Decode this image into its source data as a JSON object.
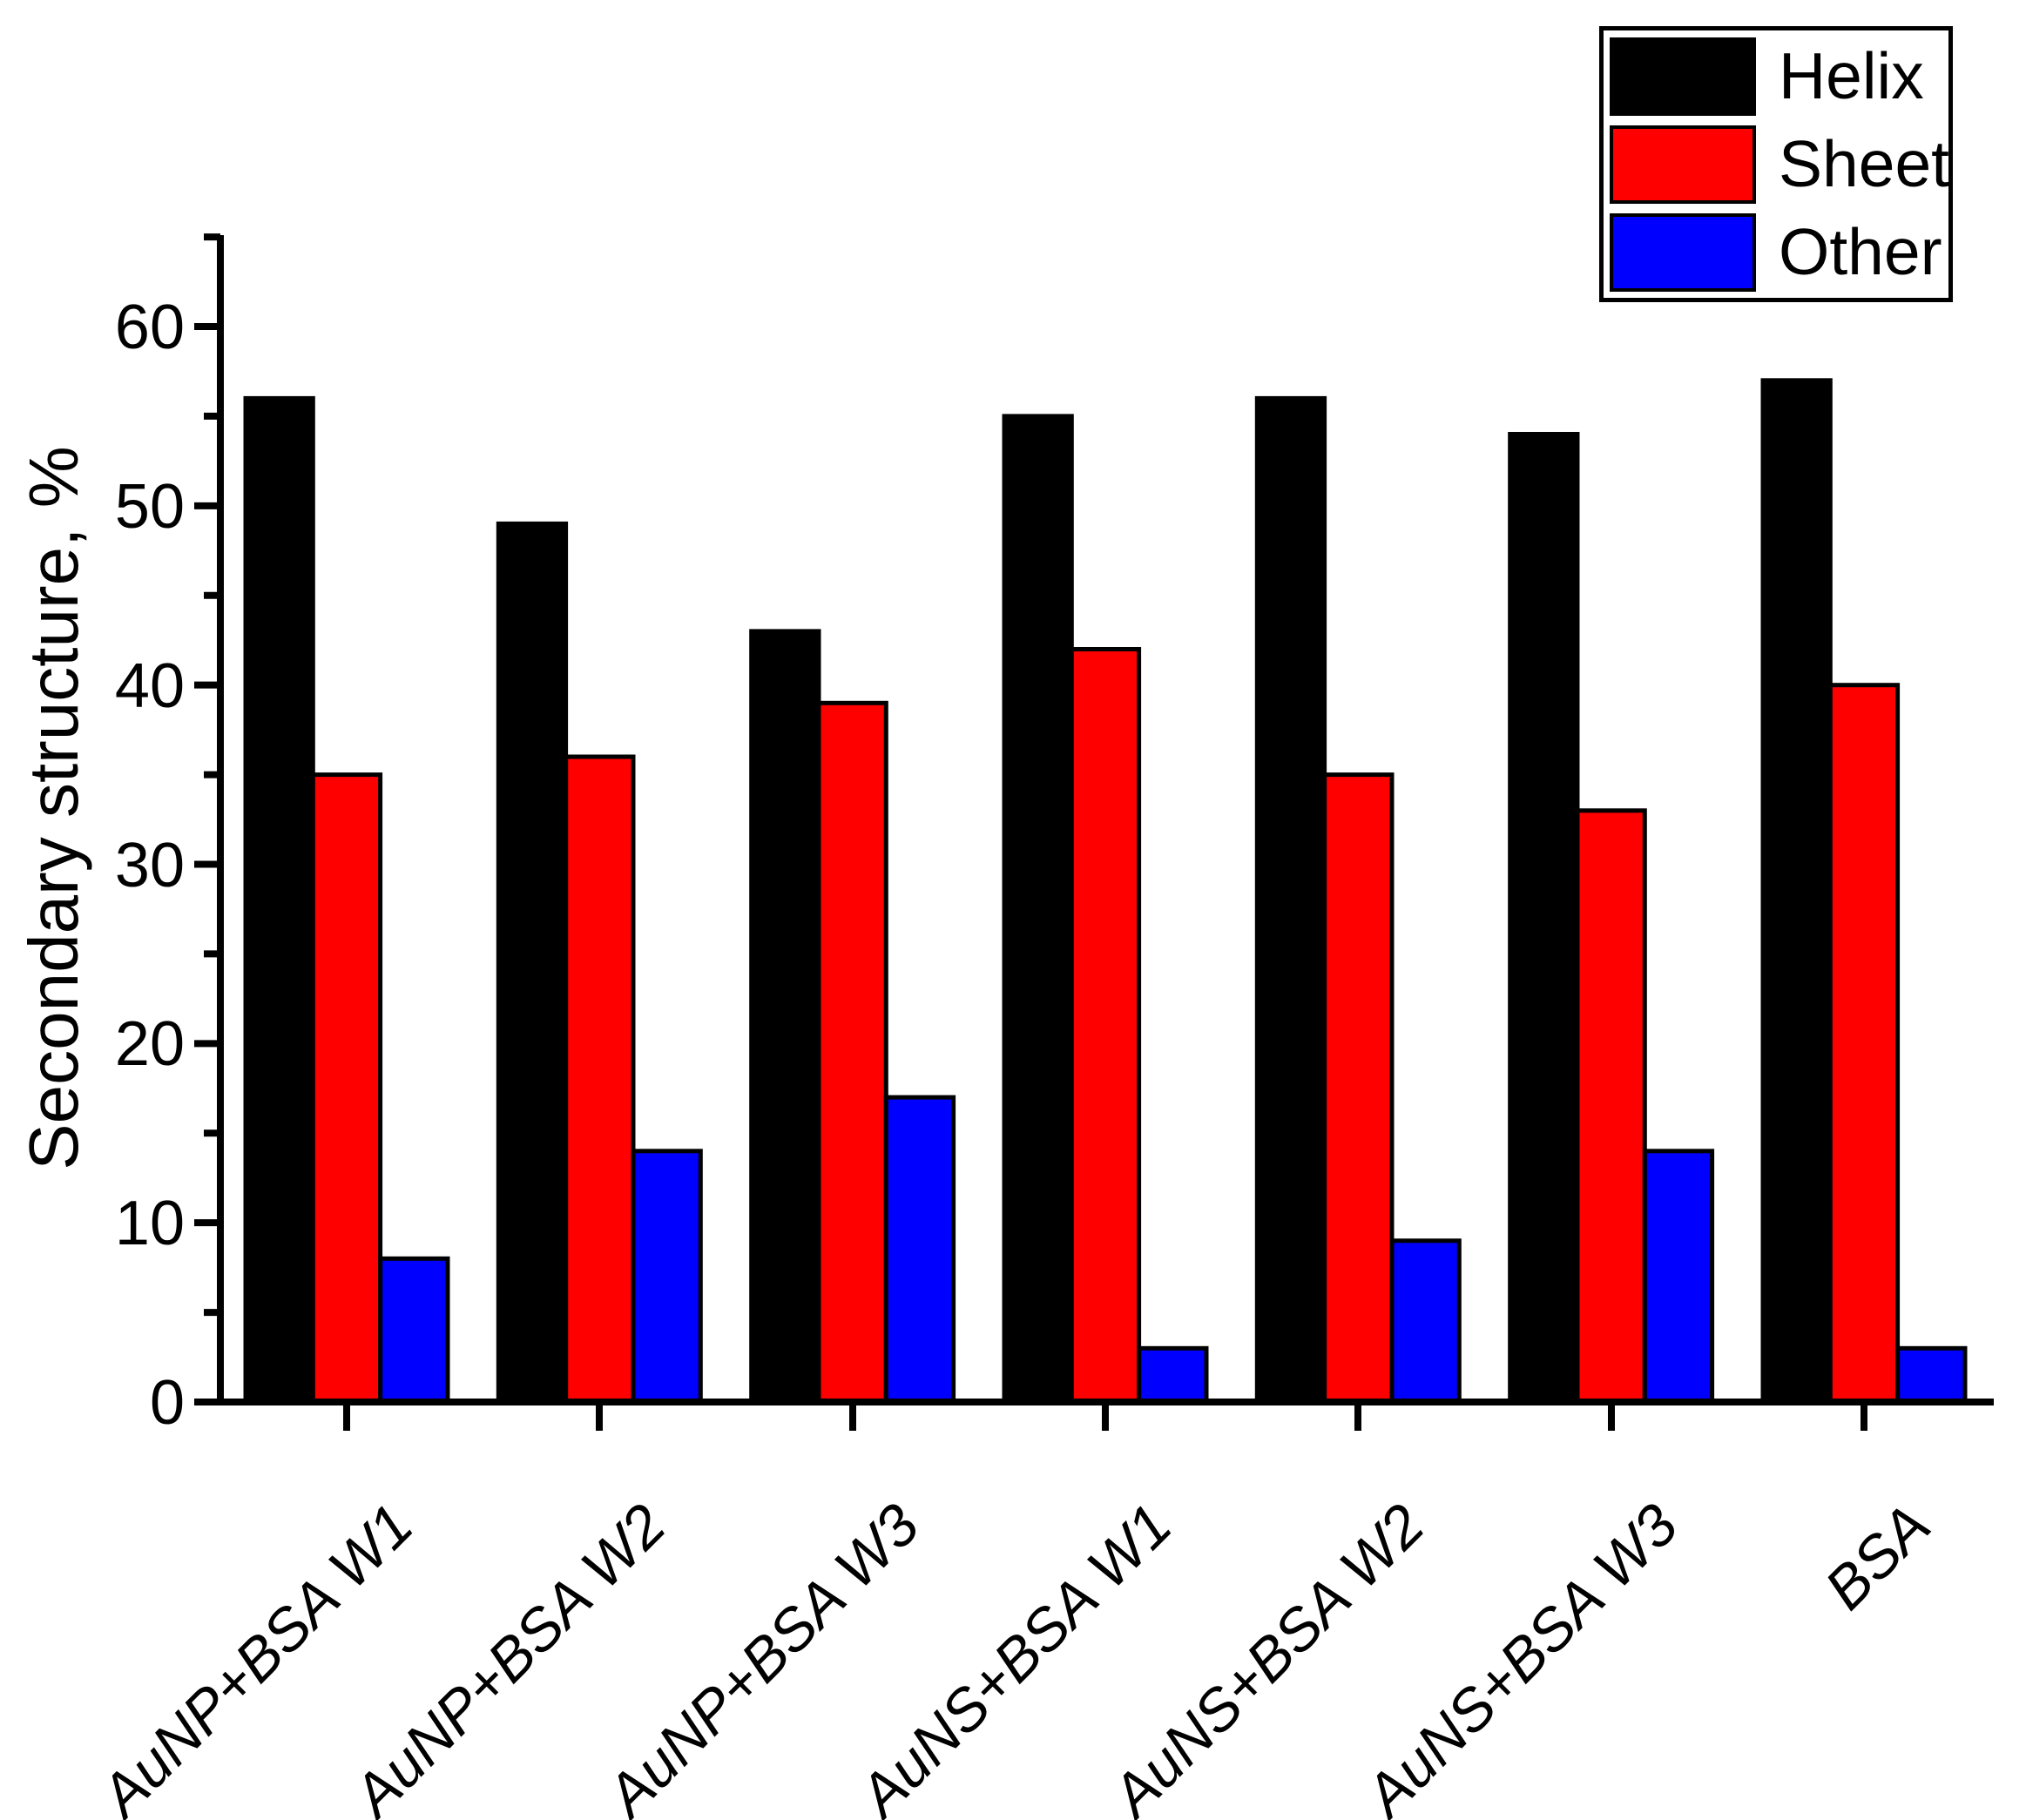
{
  "chart_data": {
    "type": "bar",
    "title": "",
    "xlabel": "",
    "ylabel": "Secondary structure, %",
    "categories": [
      "AuNP+BSA W1",
      "AuNP+BSA W2",
      "AuNP+BSA W3",
      "AuNS+BSA W1",
      "AuNS+BSA W2",
      "AuNS+BSA W3",
      "BSA"
    ],
    "series": [
      {
        "name": "Helix",
        "color": "#000000",
        "values": [
          56,
          49,
          43,
          55,
          56,
          54,
          57
        ]
      },
      {
        "name": "Sheet",
        "color": "#ff0000",
        "values": [
          35,
          36,
          39,
          42,
          35,
          33,
          40
        ]
      },
      {
        "name": "Other",
        "color": "#0000ff",
        "values": [
          8,
          14,
          17,
          3,
          9,
          14,
          3
        ]
      }
    ],
    "ylim": [
      0,
      65
    ],
    "yticks_major": [
      0,
      10,
      20,
      30,
      40,
      50,
      60
    ],
    "yticks_minor": [
      5,
      15,
      25,
      35,
      45,
      55,
      65
    ],
    "grid": false,
    "legend_position": "top-right",
    "bar_outline_color": "#000000",
    "axis_color": "#000000"
  },
  "legend": {
    "items": [
      {
        "label": "Helix",
        "color": "#000000"
      },
      {
        "label": "Sheet",
        "color": "#ff0000"
      },
      {
        "label": "Other",
        "color": "#0000ff"
      }
    ]
  }
}
